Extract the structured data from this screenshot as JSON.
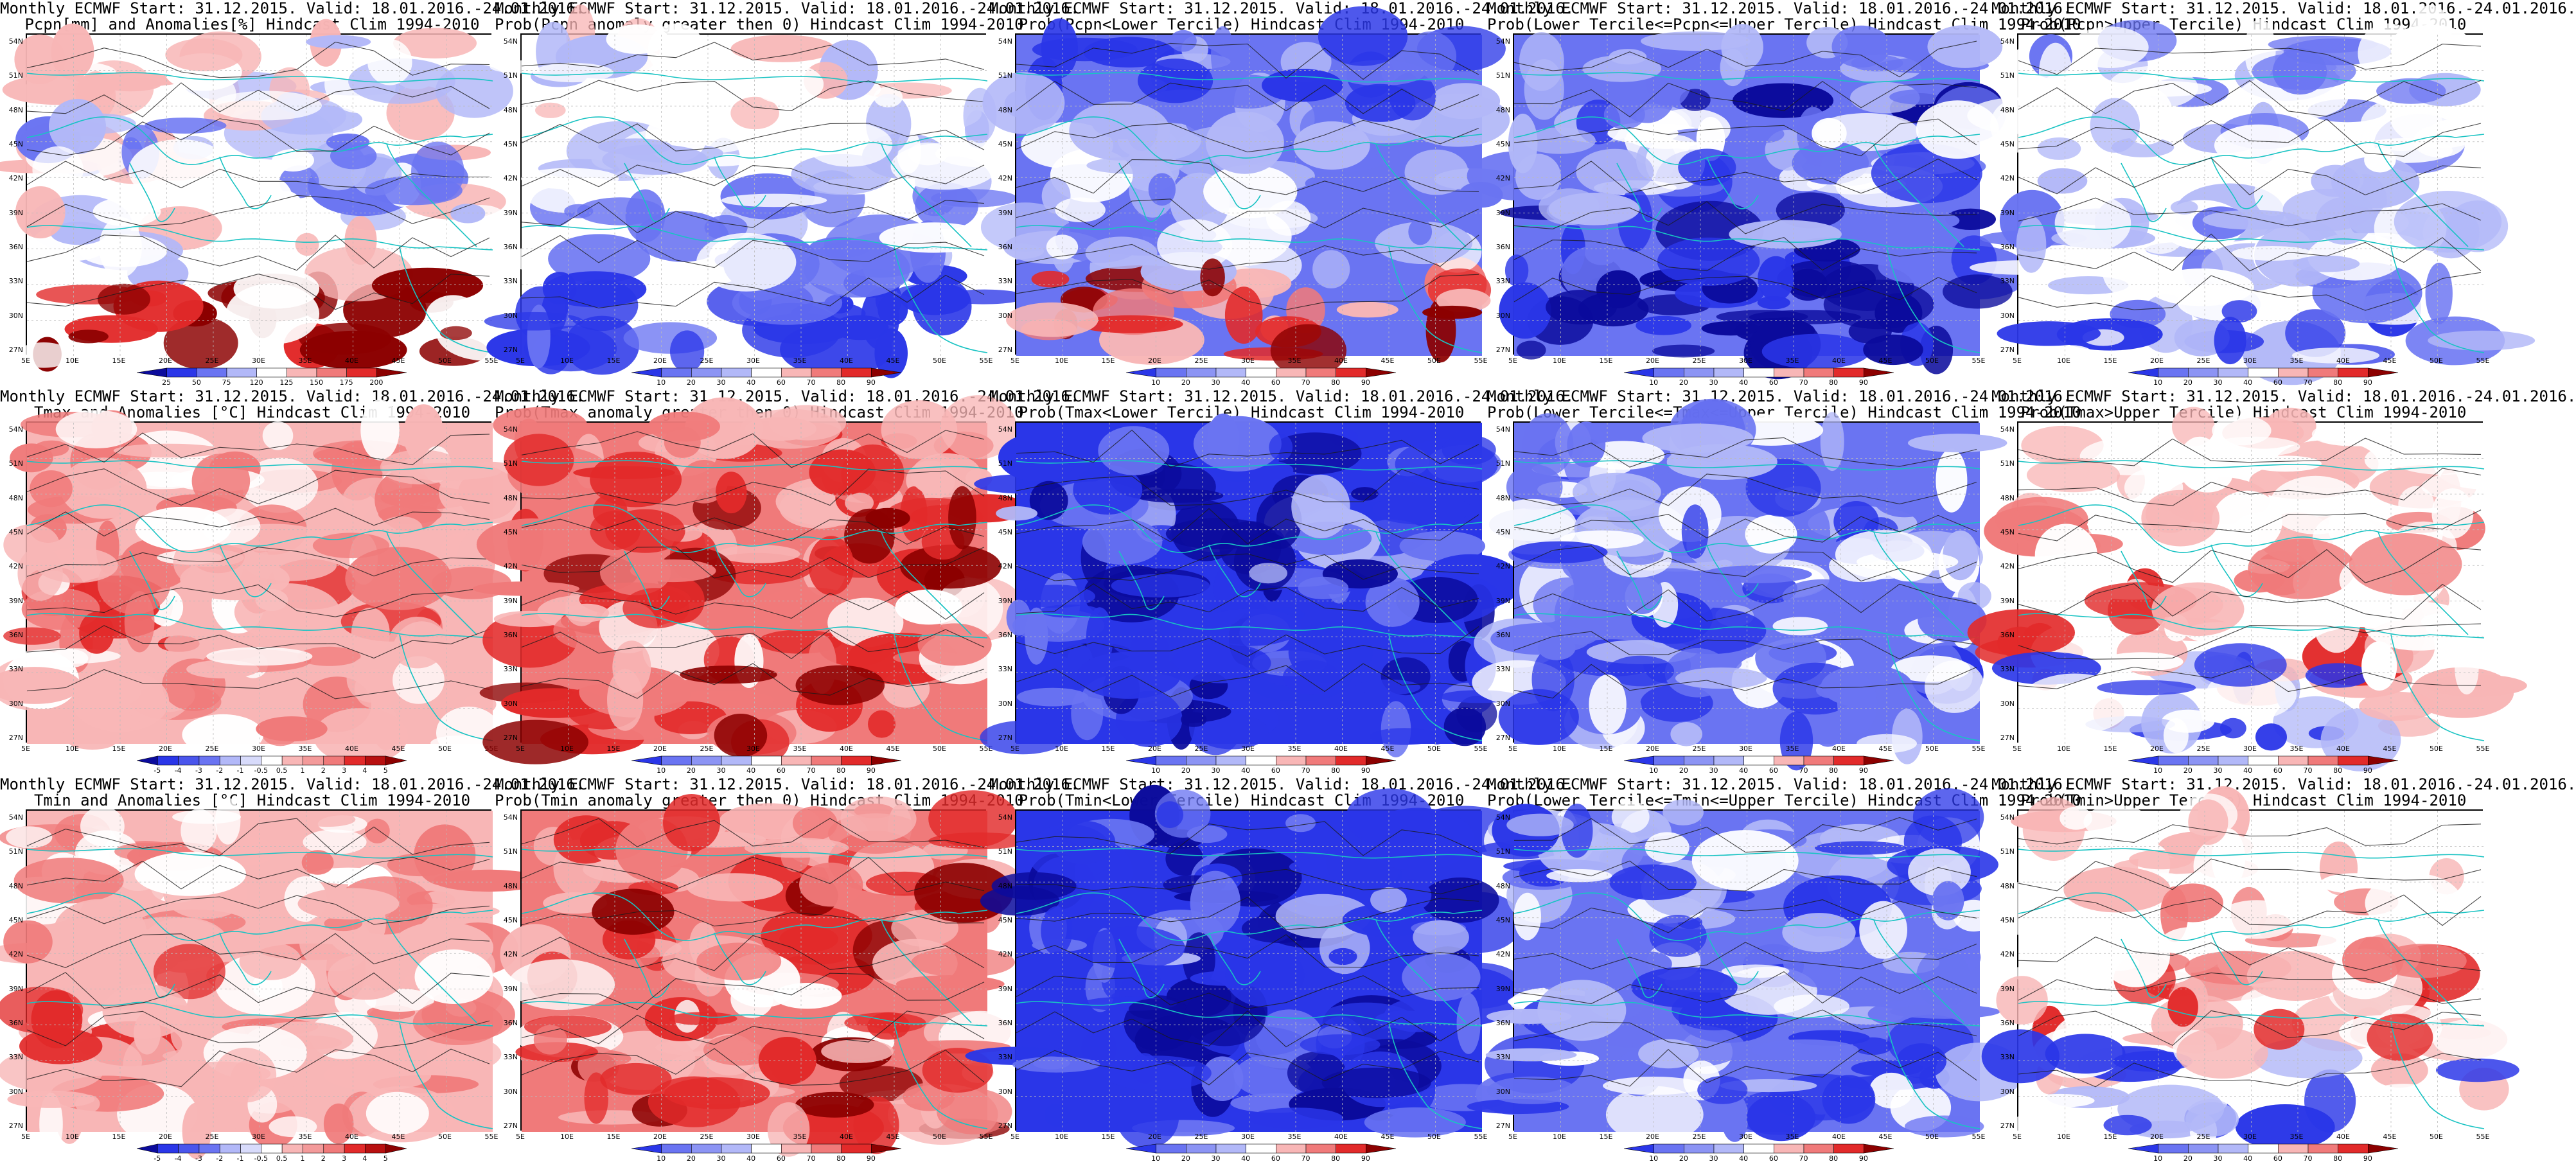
{
  "figure_title": "",
  "lat_labels": [
    "54N",
    "51N",
    "48N",
    "45N",
    "42N",
    "39N",
    "36N",
    "33N",
    "30N",
    "27N"
  ],
  "lon_labels": [
    "5E",
    "10E",
    "15E",
    "20E",
    "25E",
    "30E",
    "35E",
    "40E",
    "45E",
    "50E",
    "55E"
  ],
  "colors": {
    "blue_dark": "#0b0b9c",
    "blue": "#2a36e8",
    "blue_mid": "#6a74f2",
    "blue_light": "#b2b8f8",
    "white": "#ffffff",
    "red_light": "#f8b6b6",
    "red_mid": "#f07a7a",
    "red": "#e22a2a",
    "red_dark": "#8c0000",
    "coast": "#19c3c3",
    "contour": "#1a1a1a"
  },
  "colorbars": {
    "pcpn_anom": [
      "25",
      "50",
      "75",
      "120",
      "125",
      "150",
      "175",
      "200"
    ],
    "prob": [
      "10",
      "20",
      "30",
      "40",
      "60",
      "70",
      "80",
      "90"
    ],
    "temp_anom": [
      "-5",
      "-4",
      "-3",
      "-2",
      "-1",
      "-0.5",
      "0.5",
      "1",
      "2",
      "3",
      "4",
      "5"
    ]
  },
  "rows": [
    {
      "panels": [
        {
          "l1": "Monthly ECMWF Start: 31.12.2015. Valid: 18.01.2016.-24.01.2016.",
          "l2": "Pcpn[mm] and Anomalies[%] Hindcast Clim 1994-2010",
          "cbar": "pcpn_anom",
          "scheme": "pcpn_anom"
        },
        {
          "l1": "Monthly ECMWF Start: 31.12.2015. Valid: 18.01.2016.-24.01.2016.",
          "l2": "Prob(Pcpn anomaly greater then 0) Hindcast Clim 1994-2010",
          "cbar": "prob",
          "scheme": "pcpn_prob"
        },
        {
          "l1": "Monthly ECMWF Start: 31.12.2015. Valid: 18.01.2016.-24.01.2016.",
          "l2": "Prob(Pcpn<Lower Tercile) Hindcast Clim 1994-2010",
          "cbar": "prob",
          "scheme": "pcpn_lower"
        },
        {
          "l1": "Monthly ECMWF Start: 31.12.2015. Valid: 18.01.2016.-24.01.2016.",
          "l2": "Prob(Lower Tercile<=Pcpn<=Upper Tercile) Hindcast Clim 1994-2010",
          "cbar": "prob",
          "scheme": "pcpn_mid"
        },
        {
          "l1": "Monthly ECMWF Start: 31.12.2015. Valid: 18.01.2016.-24.01.2016.",
          "l2": "Prob(Pcpn>Upper Tercile) Hindcast Clim 1994-2010",
          "cbar": "prob",
          "scheme": "pcpn_upper"
        }
      ]
    },
    {
      "panels": [
        {
          "l1": "Monthly ECMWF Start: 31.12.2015. Valid: 18.01.2016.-24.01.2016.",
          "l2": "Tmax and Anomalies [°C] Hindcast Clim 1994-2010",
          "cbar": "temp_anom",
          "scheme": "warm"
        },
        {
          "l1": "Monthly ECMWF Start: 31.12.2015. Valid: 18.01.2016.-24.01.2016.",
          "l2": "Prob(Tmax anomaly greater then 0) Hindcast Clim 1994-2010",
          "cbar": "prob",
          "scheme": "warm_strong"
        },
        {
          "l1": "Monthly ECMWF Start: 31.12.2015. Valid: 18.01.2016.-24.01.2016.",
          "l2": "Prob(Tmax<Lower Tercile) Hindcast Clim 1994-2010",
          "cbar": "prob",
          "scheme": "blue_deep"
        },
        {
          "l1": "Monthly ECMWF Start: 31.12.2015. Valid: 18.01.2016.-24.01.2016.",
          "l2": "Prob(Lower Tercile<=Tmax<=Upper Tercile) Hindcast Clim 1994-2010",
          "cbar": "prob",
          "scheme": "blue_mixed"
        },
        {
          "l1": "Monthly ECMWF Start: 31.12.2015. Valid: 18.01.2016.-24.01.2016.",
          "l2": "Prob(Tmax>Upper Tercile) Hindcast Clim 1994-2010",
          "cbar": "prob",
          "scheme": "upper_sparse"
        }
      ]
    },
    {
      "panels": [
        {
          "l1": "Monthly ECMWF Start: 31.12.2015. Valid: 18.01.2016.-24.01.2016.",
          "l2": "Tmin and Anomalies [°C] Hindcast Clim 1994-2010",
          "cbar": "temp_anom",
          "scheme": "warm"
        },
        {
          "l1": "Monthly ECMWF Start: 31.12.2015. Valid: 18.01.2016.-24.01.2016.",
          "l2": "Prob(Tmin anomaly greater then 0) Hindcast Clim 1994-2010",
          "cbar": "prob",
          "scheme": "warm_strong"
        },
        {
          "l1": "Monthly ECMWF Start: 31.12.2015. Valid: 18.01.2016.-24.01.2016.",
          "l2": "Prob(Tmin<Lower Tercile) Hindcast Clim 1994-2010",
          "cbar": "prob",
          "scheme": "blue_deep"
        },
        {
          "l1": "Monthly ECMWF Start: 31.12.2015. Valid: 18.01.2016.-24.01.2016.",
          "l2": "Prob(Lower Tercile<=Tmin<=Upper Tercile) Hindcast Clim 1994-2010",
          "cbar": "prob",
          "scheme": "blue_mixed"
        },
        {
          "l1": "Monthly ECMWF Start: 31.12.2015. Valid: 18.01.2016.-24.01.2016.",
          "l2": "Prob(Tmin>Upper Tercile) Hindcast Clim 1994-2010",
          "cbar": "prob",
          "scheme": "upper_sparse"
        }
      ]
    }
  ]
}
